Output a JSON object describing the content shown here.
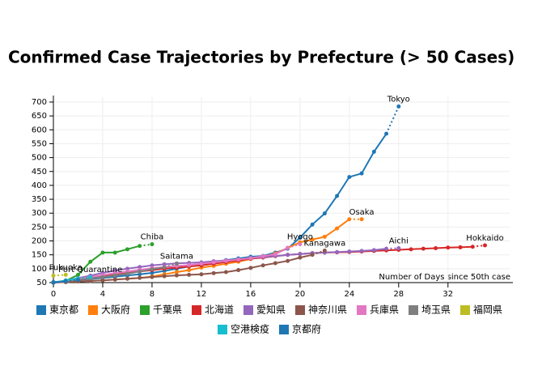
{
  "chart_data": {
    "type": "line",
    "title": "Confirmed Case Trajectories by Prefecture (> 50 Cases)",
    "x_label": "Number of Days since 50th case",
    "x": [
      0,
      1,
      2,
      3,
      4,
      5,
      6,
      7,
      8,
      9,
      10,
      11,
      12,
      13,
      14,
      15,
      16,
      17,
      18,
      19,
      20,
      21,
      22,
      23,
      24,
      25,
      26,
      27,
      28,
      29,
      30,
      31,
      32,
      33,
      34,
      35
    ],
    "xlim": [
      0,
      37
    ],
    "xticks": [
      0,
      4,
      8,
      12,
      16,
      20,
      24,
      28,
      32
    ],
    "ylim": [
      50,
      700
    ],
    "yticks": [
      50,
      100,
      150,
      200,
      250,
      300,
      350,
      400,
      450,
      500,
      550,
      600,
      650,
      700
    ],
    "grid": true,
    "last_segment_dotted": true,
    "series": [
      {
        "name": "東京都",
        "label": "Tokyo",
        "color": "#1f77b4",
        "values": [
          52,
          55,
          59,
          63,
          67,
          71,
          76,
          80,
          85,
          92,
          100,
          108,
          117,
          124,
          131,
          137,
          143,
          146,
          158,
          172,
          212,
          259,
          299,
          362,
          430,
          443,
          521,
          586,
          684,
          null,
          null,
          null,
          null,
          null,
          null,
          null
        ]
      },
      {
        "name": "大阪府",
        "label": "Osaka",
        "color": "#ff7f0e",
        "values": [
          50,
          52,
          54,
          56,
          58,
          61,
          64,
          67,
          72,
          80,
          88,
          95,
          104,
          110,
          118,
          125,
          135,
          142,
          155,
          175,
          195,
          205,
          215,
          245,
          278,
          278,
          null,
          null,
          null,
          null,
          null,
          null,
          null,
          null,
          null,
          null
        ]
      },
      {
        "name": "千葉県",
        "label": "Chiba",
        "color": "#2ca02c",
        "values": [
          50,
          56,
          78,
          125,
          158,
          158,
          170,
          182,
          188,
          null,
          null,
          null,
          null,
          null,
          null,
          null,
          null,
          null,
          null,
          null,
          null,
          null,
          null,
          null,
          null,
          null,
          null,
          null,
          null,
          null,
          null,
          null,
          null,
          null,
          null,
          null
        ]
      },
      {
        "name": "北海道",
        "label": "Hokkaido",
        "color": "#d62728",
        "values": [
          50,
          55,
          62,
          68,
          73,
          78,
          84,
          90,
          95,
          100,
          104,
          108,
          112,
          118,
          124,
          130,
          136,
          140,
          145,
          150,
          153,
          156,
          158,
          159,
          160,
          162,
          164,
          166,
          168,
          170,
          172,
          174,
          176,
          177,
          179,
          184
        ]
      },
      {
        "name": "愛知県",
        "label": "Aichi",
        "color": "#9467bd",
        "values": [
          50,
          58,
          66,
          75,
          85,
          93,
          100,
          106,
          112,
          116,
          119,
          121,
          123,
          127,
          130,
          134,
          138,
          142,
          146,
          150,
          153,
          156,
          158,
          160,
          162,
          164,
          167,
          172,
          174,
          null,
          null,
          null,
          null,
          null,
          null,
          null
        ]
      },
      {
        "name": "神奈川県",
        "label": "Kanagawa",
        "color": "#8c564b",
        "values": [
          50,
          52,
          54,
          56,
          58,
          61,
          64,
          67,
          70,
          73,
          76,
          78,
          80,
          84,
          88,
          95,
          103,
          112,
          120,
          128,
          140,
          150,
          165,
          null,
          null,
          null,
          null,
          null,
          null,
          null,
          null,
          null,
          null,
          null,
          null,
          null
        ]
      },
      {
        "name": "兵庫県",
        "label": "Hyogo",
        "color": "#e377c2",
        "values": [
          50,
          56,
          63,
          70,
          77,
          84,
          90,
          96,
          102,
          106,
          110,
          113,
          118,
          123,
          128,
          133,
          138,
          145,
          152,
          175,
          188,
          null,
          null,
          null,
          null,
          null,
          null,
          null,
          null,
          null,
          null,
          null,
          null,
          null,
          null,
          null
        ]
      },
      {
        "name": "埼玉県",
        "label": "Saitama",
        "color": "#7f7f7f",
        "values": [
          50,
          55,
          60,
          65,
          70,
          76,
          82,
          90,
          98,
          105,
          118,
          null,
          null,
          null,
          null,
          null,
          null,
          null,
          null,
          null,
          null,
          null,
          null,
          null,
          null,
          null,
          null,
          null,
          null,
          null,
          null,
          null,
          null,
          null,
          null,
          null
        ]
      },
      {
        "name": "福岡県",
        "label": "Fukuoka",
        "color": "#bcbd22",
        "values": [
          75,
          78,
          null,
          null,
          null,
          null,
          null,
          null,
          null,
          null,
          null,
          null,
          null,
          null,
          null,
          null,
          null,
          null,
          null,
          null,
          null,
          null,
          null,
          null,
          null,
          null,
          null,
          null,
          null,
          null,
          null,
          null,
          null,
          null,
          null,
          null
        ]
      },
      {
        "name": "空港検疫",
        "label": "Port Quarantine",
        "color": "#17becf",
        "values": [
          50,
          58,
          65,
          70,
          null,
          null,
          null,
          null,
          null,
          null,
          null,
          null,
          null,
          null,
          null,
          null,
          null,
          null,
          null,
          null,
          null,
          null,
          null,
          null,
          null,
          null,
          null,
          null,
          null,
          null,
          null,
          null,
          null,
          null,
          null,
          null
        ]
      },
      {
        "name": "京都府",
        "color": "#1f77b4",
        "values": [
          50,
          55,
          60,
          null,
          null,
          null,
          null,
          null,
          null,
          null,
          null,
          null,
          null,
          null,
          null,
          null,
          null,
          null,
          null,
          null,
          null,
          null,
          null,
          null,
          null,
          null,
          null,
          null,
          null,
          null,
          null,
          null,
          null,
          null,
          null,
          null
        ]
      }
    ]
  }
}
